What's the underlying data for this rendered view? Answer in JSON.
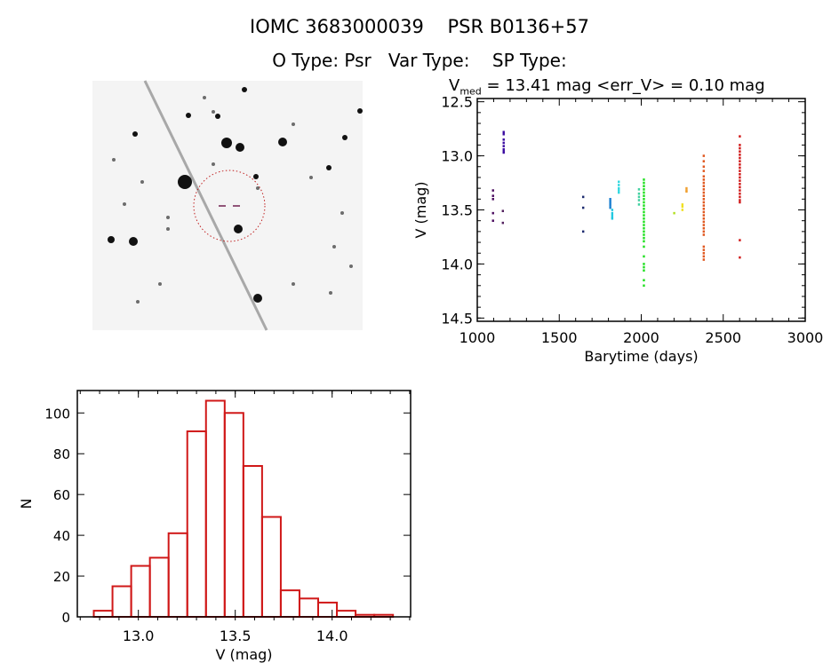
{
  "header": {
    "title_line1": "IOMC 3683000039    PSR B0136+57",
    "title_line2": "O Type: Psr   Var Type:    SP Type:",
    "stats_prefix": "V",
    "stats_sub": "med",
    "stats_rest": " = 13.41 mag <err_V> = 0.10 mag"
  },
  "chart_data": [
    {
      "type": "scatter",
      "xlabel": "Barytime (days)",
      "ylabel": "V (mag)",
      "xlim": [
        1000,
        3000
      ],
      "ylim": [
        14.53,
        12.47
      ],
      "y_reversed": true,
      "xticks": [
        "1000",
        "1500",
        "2000",
        "2500",
        "3000"
      ],
      "yticks": [
        "12.5",
        "13.0",
        "13.5",
        "14.0",
        "14.5"
      ],
      "grid": false,
      "groups": [
        {
          "color": "#4a0a5e",
          "x": 1095,
          "y": [
            13.32,
            13.37,
            13.4,
            13.53,
            13.6
          ]
        },
        {
          "color": "#3a0aa0",
          "x": 1160,
          "y": [
            12.78,
            12.8,
            12.85,
            12.88,
            12.91,
            12.94,
            12.96,
            12.97
          ]
        },
        {
          "color": "#52205e",
          "x": 1155,
          "y": [
            13.51,
            13.62
          ]
        },
        {
          "color": "#1c2a6e",
          "x": 1645,
          "y": [
            13.38,
            13.48,
            13.7
          ]
        },
        {
          "color": "#1a7fd0",
          "x": 1810,
          "y": [
            13.4,
            13.42,
            13.44,
            13.46,
            13.48
          ]
        },
        {
          "color": "#20c8e0",
          "x": 1822,
          "y": [
            13.5,
            13.53,
            13.55,
            13.57,
            13.58
          ]
        },
        {
          "color": "#30d8e0",
          "x": 1862,
          "y": [
            13.24,
            13.27,
            13.3,
            13.32,
            13.34
          ]
        },
        {
          "color": "#40d0a0",
          "x": 1985,
          "y": [
            13.31,
            13.35,
            13.38,
            13.41,
            13.45
          ]
        },
        {
          "color": "#20e020",
          "x": 2015,
          "y": [
            13.22,
            13.25,
            13.28,
            13.31,
            13.34,
            13.37,
            13.4,
            13.43,
            13.46,
            13.49,
            13.52,
            13.55,
            13.58,
            13.61,
            13.64,
            13.67,
            13.7,
            13.73,
            13.76,
            13.79,
            13.84,
            13.93,
            14.0,
            14.03,
            14.06,
            14.15,
            14.2
          ]
        },
        {
          "color": "#b0e020",
          "x": 2200,
          "y": [
            13.53
          ]
        },
        {
          "color": "#f0e020",
          "x": 2250,
          "y": [
            13.45,
            13.47,
            13.5
          ]
        },
        {
          "color": "#f0a030",
          "x": 2275,
          "y": [
            13.3,
            13.32,
            13.33
          ]
        },
        {
          "color": "#e05820",
          "x": 2380,
          "y": [
            13.0,
            13.05,
            13.1,
            13.14,
            13.19,
            13.22,
            13.25,
            13.28,
            13.31,
            13.34,
            13.37,
            13.4,
            13.43,
            13.46,
            13.49,
            13.52,
            13.55,
            13.58,
            13.61,
            13.64,
            13.67,
            13.7,
            13.73,
            13.84,
            13.87,
            13.9,
            13.93,
            13.96
          ]
        },
        {
          "color": "#d01818",
          "x": 2600,
          "y": [
            12.82,
            12.9,
            12.93,
            12.96,
            12.99,
            13.02,
            13.05,
            13.08,
            13.11,
            13.14,
            13.17,
            13.2,
            13.23,
            13.26,
            13.29,
            13.32,
            13.35,
            13.38,
            13.41,
            13.43,
            13.78,
            13.94
          ]
        }
      ]
    },
    {
      "type": "bar",
      "histogram": true,
      "xlabel": "V (mag)",
      "ylabel": "N",
      "xlim": [
        12.685,
        14.405
      ],
      "ylim": [
        0,
        111
      ],
      "xticks": [
        "13.0",
        "13.5",
        "14.0"
      ],
      "yticks": [
        "0",
        "20",
        "40",
        "60",
        "80",
        "100"
      ],
      "bin_start": 12.77,
      "bin_width": 0.0965,
      "values": [
        3,
        15,
        25,
        29,
        41,
        91,
        106,
        100,
        74,
        49,
        13,
        9,
        7,
        3,
        1,
        1
      ],
      "bar_color": "#d01818"
    }
  ]
}
